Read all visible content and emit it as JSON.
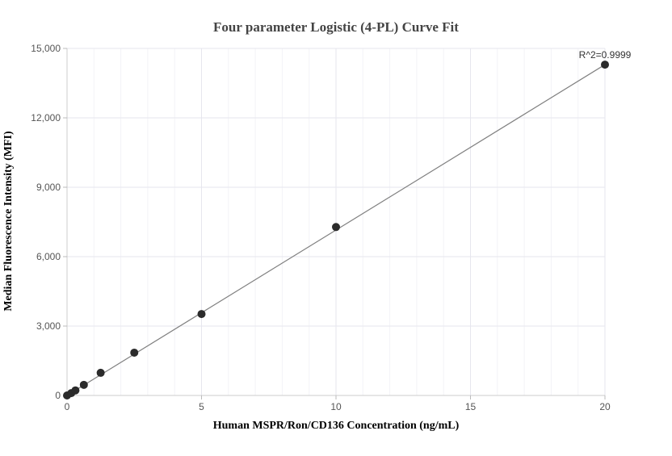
{
  "chart_data": {
    "type": "scatter",
    "title": "Four parameter Logistic (4-PL) Curve Fit",
    "xlabel": "Human MSPR/Ron/CD136 Concentration (ng/mL)",
    "ylabel": "Median Fluorescence Intensity (MFI)",
    "xlim": [
      0,
      20
    ],
    "ylim": [
      0,
      15000
    ],
    "x_ticks": [
      0,
      5,
      10,
      15,
      20
    ],
    "x_tick_labels": [
      "0",
      "5",
      "10",
      "15",
      "20"
    ],
    "y_ticks": [
      0,
      3000,
      6000,
      9000,
      12000,
      15000
    ],
    "y_tick_labels": [
      "0",
      "3,000",
      "6,000",
      "9,000",
      "12,000",
      "15,000"
    ],
    "grid": true,
    "series": [
      {
        "x": [
          0,
          0.156,
          0.3125,
          0.625,
          1.25,
          2.5,
          5,
          10,
          20
        ],
        "y": [
          0,
          100,
          220,
          460,
          980,
          1850,
          3520,
          7280,
          14300
        ],
        "color": "#2b2b2b"
      }
    ],
    "fit_line": {
      "x": [
        0,
        20
      ],
      "y": [
        0,
        14300
      ],
      "color": "#808080"
    },
    "annotation": "R^2=0.9999"
  }
}
